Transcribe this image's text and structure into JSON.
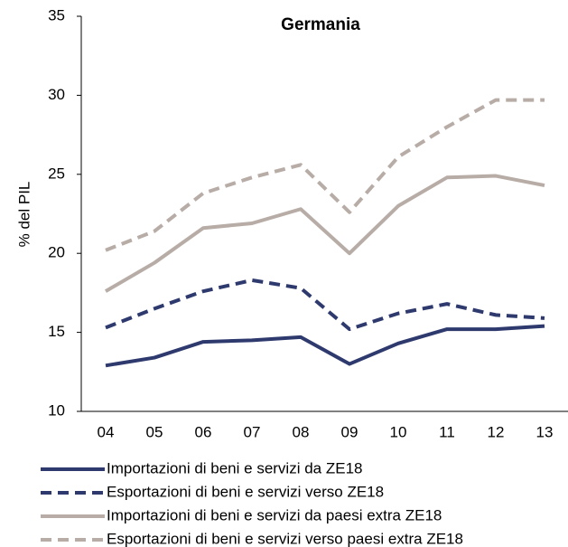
{
  "chart_data": {
    "type": "line",
    "title": "Germania",
    "y_label": "% del PIL",
    "categories": [
      "04",
      "05",
      "06",
      "07",
      "08",
      "09",
      "10",
      "11",
      "12",
      "13"
    ],
    "series": [
      {
        "name": "Importazioni di beni e servizi da ZE18",
        "color": "#2e3a6e",
        "dashed": false,
        "values": [
          12.9,
          13.4,
          14.4,
          14.5,
          14.7,
          13.0,
          14.3,
          15.2,
          15.2,
          15.4
        ]
      },
      {
        "name": "Esportazioni di beni e servizi verso ZE18",
        "color": "#2e3a6e",
        "dashed": true,
        "values": [
          15.3,
          16.5,
          17.6,
          18.3,
          17.8,
          15.2,
          16.2,
          16.8,
          16.1,
          15.9
        ]
      },
      {
        "name": "Importazioni di beni e servizi da paesi extra ZE18",
        "color": "#b8aca6",
        "dashed": false,
        "values": [
          17.6,
          19.4,
          21.6,
          21.9,
          22.8,
          20.0,
          23.0,
          24.8,
          24.9,
          24.3
        ]
      },
      {
        "name": "Esportazioni di beni e servizi verso paesi extra ZE18",
        "color": "#b8aca6",
        "dashed": true,
        "values": [
          20.2,
          21.4,
          23.8,
          24.8,
          25.6,
          22.6,
          26.1,
          28.0,
          29.7,
          29.7
        ]
      }
    ],
    "ylim": [
      10,
      35
    ],
    "yticks": [
      10,
      15,
      20,
      25,
      30,
      35
    ],
    "grid": false
  }
}
